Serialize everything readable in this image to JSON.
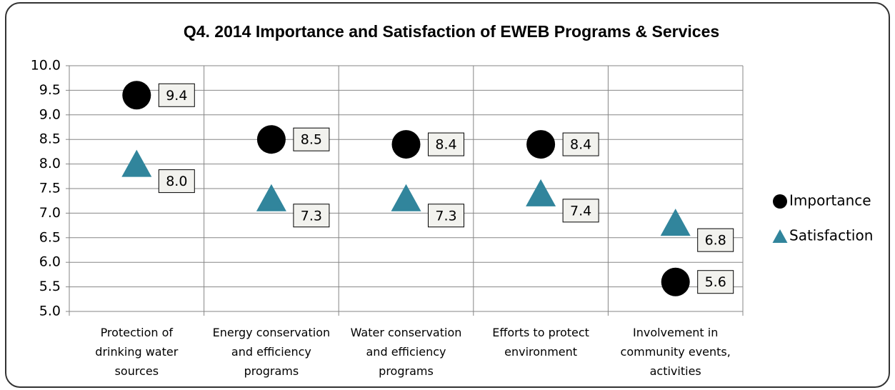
{
  "chart_data": {
    "type": "scatter",
    "title": "Q4. 2014 Importance and Satisfaction of EWEB Programs & Services",
    "categories": [
      [
        "Protection of",
        "drinking water",
        "sources"
      ],
      [
        "Energy conservation",
        "and efficiency",
        "programs"
      ],
      [
        "Water conservation",
        "and efficiency",
        "programs"
      ],
      [
        "Efforts to protect",
        "environment"
      ],
      [
        "Involvement in",
        "community events,",
        "activities"
      ]
    ],
    "series": [
      {
        "name": "Importance",
        "color": "#000000",
        "marker": "circle",
        "values": [
          9.4,
          8.5,
          8.4,
          8.4,
          5.6
        ]
      },
      {
        "name": "Satisfaction",
        "color": "#31859c",
        "marker": "triangle",
        "values": [
          8.0,
          7.3,
          7.3,
          7.4,
          6.8
        ],
        "value_labels": [
          "8.0",
          "7.3",
          "7.3",
          "7.4",
          "6.8"
        ]
      }
    ],
    "ylim": [
      5,
      10
    ],
    "yticks": [
      {
        "value": 5,
        "label": "5.0"
      },
      5.5,
      {
        "value": 6,
        "label": "6.0"
      },
      6.5,
      {
        "value": 7,
        "label": "7.0"
      },
      7.5,
      {
        "value": 8,
        "label": "8.0"
      },
      8.5,
      {
        "value": 9,
        "label": "9.0"
      },
      9.5,
      {
        "value": 10,
        "label": "10.0"
      }
    ],
    "grid": true,
    "legend": "right"
  }
}
